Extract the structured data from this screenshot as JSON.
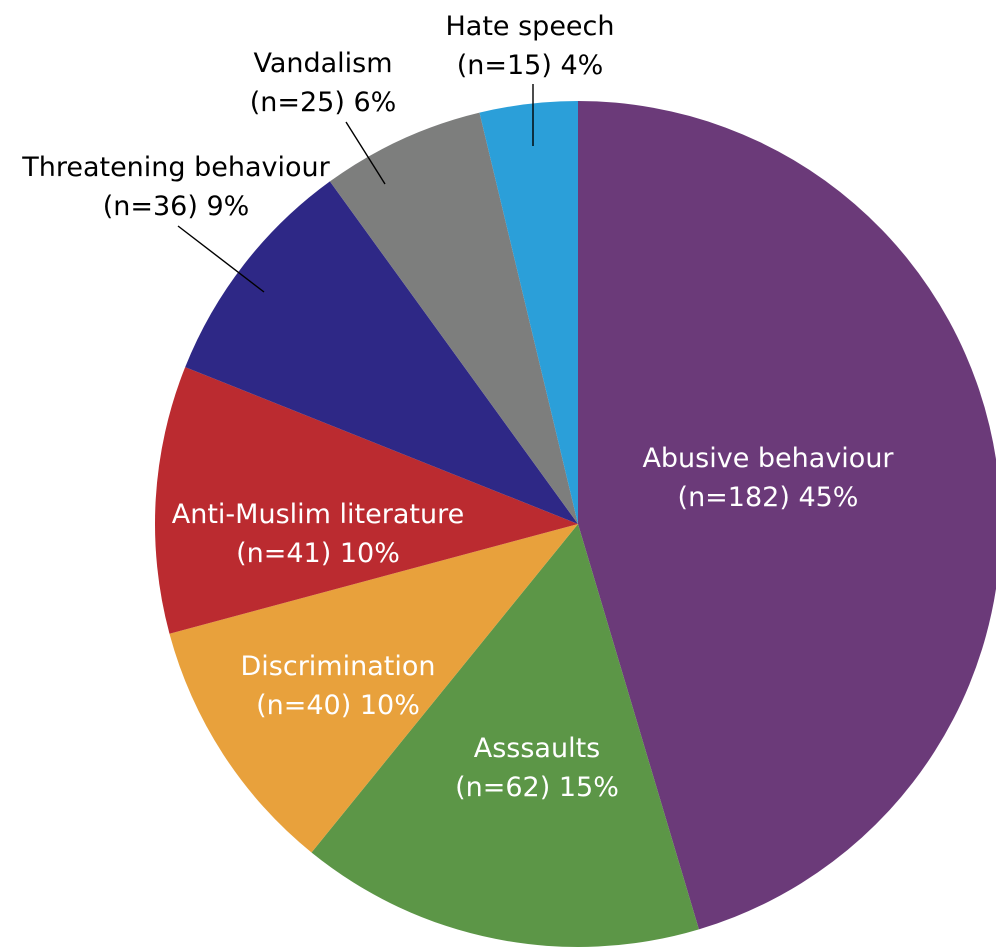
{
  "chart_data": {
    "type": "pie",
    "title": "",
    "start_angle_deg": 0,
    "direction": "clockwise",
    "slices": [
      {
        "label": "Abusive behaviour",
        "n": 182,
        "percent": 45,
        "color": "#6b3a79",
        "label_line1": "Abusive behaviour",
        "label_line2": "(n=182) 45%",
        "label_position": "inside",
        "text_color": "#ffffff"
      },
      {
        "label": "Asssaults",
        "n": 62,
        "percent": 15,
        "color": "#5c9647",
        "label_line1": "Asssaults",
        "label_line2": "(n=62) 15%",
        "label_position": "inside",
        "text_color": "#ffffff"
      },
      {
        "label": "Discrimination",
        "n": 40,
        "percent": 10,
        "color": "#e8a13c",
        "label_line1": "Discrimination",
        "label_line2": "(n=40) 10%",
        "label_position": "inside",
        "text_color": "#ffffff"
      },
      {
        "label": "Anti-Muslim literature",
        "n": 41,
        "percent": 10,
        "color": "#bb2b30",
        "label_line1": "Anti-Muslim literature",
        "label_line2": "(n=41) 10%",
        "label_position": "inside",
        "text_color": "#ffffff"
      },
      {
        "label": "Threatening behaviour",
        "n": 36,
        "percent": 9,
        "color": "#2e2886",
        "label_line1": "Threatening behaviour",
        "label_line2": "(n=36) 9%",
        "label_position": "outside",
        "text_color": "#000000"
      },
      {
        "label": "Vandalism",
        "n": 25,
        "percent": 6,
        "color": "#7d7e7d",
        "label_line1": "Vandalism",
        "label_line2": "(n=25) 6%",
        "label_position": "outside",
        "text_color": "#000000"
      },
      {
        "label": "Hate speech",
        "n": 15,
        "percent": 4,
        "color": "#2b9fd9",
        "label_line1": "Hate speech",
        "label_line2": "(n=15) 4%",
        "label_position": "outside",
        "text_color": "#000000"
      }
    ]
  }
}
